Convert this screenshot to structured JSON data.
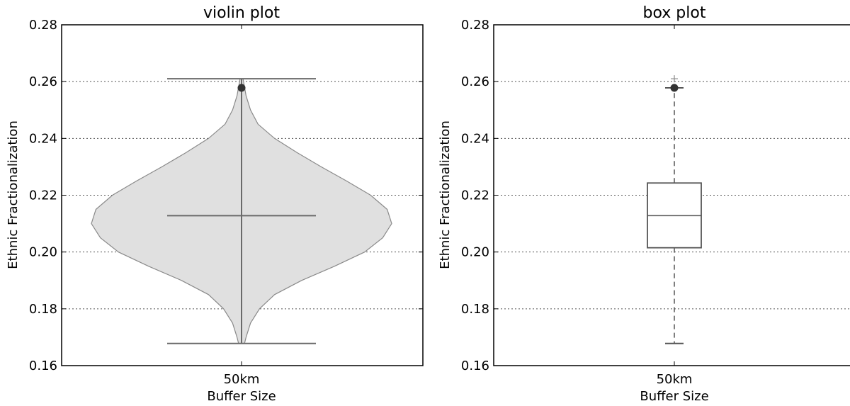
{
  "chart_data": [
    {
      "type": "violin",
      "title": "violin plot",
      "xlabel": "Buffer Size",
      "ylabel": "Ethnic Fractionalization",
      "categories": [
        "50km"
      ],
      "ylim": [
        0.16,
        0.28
      ],
      "yticks": [
        0.16,
        0.18,
        0.2,
        0.22,
        0.24,
        0.26,
        0.28
      ],
      "ytick_labels": [
        "0.16",
        "0.18",
        "0.20",
        "0.22",
        "0.24",
        "0.26",
        "0.28"
      ],
      "grid": "y-dotted",
      "stats": {
        "min": 0.1678,
        "max": 0.261,
        "mean": 0.2128,
        "outlier_point": 0.2578
      },
      "density_profile": [
        {
          "y": 0.1678,
          "w": 0.02
        },
        {
          "y": 0.17,
          "w": 0.03
        },
        {
          "y": 0.175,
          "w": 0.06
        },
        {
          "y": 0.18,
          "w": 0.12
        },
        {
          "y": 0.185,
          "w": 0.22
        },
        {
          "y": 0.19,
          "w": 0.4
        },
        {
          "y": 0.195,
          "w": 0.62
        },
        {
          "y": 0.2,
          "w": 0.82
        },
        {
          "y": 0.205,
          "w": 0.94
        },
        {
          "y": 0.21,
          "w": 1.0
        },
        {
          "y": 0.215,
          "w": 0.97
        },
        {
          "y": 0.22,
          "w": 0.86
        },
        {
          "y": 0.225,
          "w": 0.7
        },
        {
          "y": 0.23,
          "w": 0.53
        },
        {
          "y": 0.235,
          "w": 0.37
        },
        {
          "y": 0.24,
          "w": 0.22
        },
        {
          "y": 0.245,
          "w": 0.11
        },
        {
          "y": 0.25,
          "w": 0.06
        },
        {
          "y": 0.255,
          "w": 0.03
        },
        {
          "y": 0.261,
          "w": 0.01
        }
      ],
      "colors": {
        "fill": "#e0e0e0",
        "edge": "#8a8a8a",
        "lines": "#6a6a6a",
        "point": "#333333"
      }
    },
    {
      "type": "box",
      "title": "box plot",
      "xlabel": "Buffer Size",
      "ylabel": "Ethnic Fractionalization",
      "categories": [
        "50km"
      ],
      "ylim": [
        0.16,
        0.28
      ],
      "yticks": [
        0.16,
        0.18,
        0.2,
        0.22,
        0.24,
        0.26,
        0.28
      ],
      "ytick_labels": [
        "0.16",
        "0.18",
        "0.20",
        "0.22",
        "0.24",
        "0.26",
        "0.28"
      ],
      "grid": "y-dotted",
      "stats": {
        "whisker_low": 0.1678,
        "q1": 0.2015,
        "median": 0.2128,
        "q3": 0.2243,
        "whisker_high": 0.2578,
        "fliers": [
          0.261
        ],
        "marked_point": 0.2578
      },
      "colors": {
        "box": "#555555",
        "whisker": "#555555",
        "flier": "#888888",
        "point": "#333333"
      }
    }
  ]
}
